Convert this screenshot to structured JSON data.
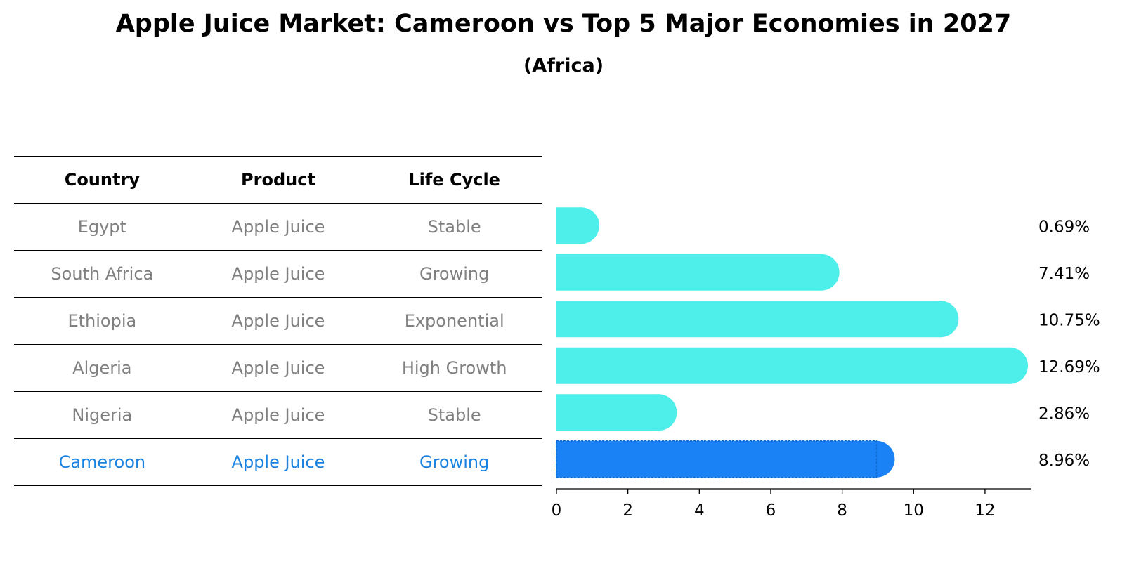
{
  "title": "Apple Juice Market: Cameroon vs Top 5 Major Economies in 2027",
  "subtitle": "(Africa)",
  "table": {
    "headers": [
      "Country",
      "Product",
      "Life Cycle"
    ],
    "rows": [
      {
        "country": "Egypt",
        "product": "Apple Juice",
        "life_cycle": "Stable"
      },
      {
        "country": "South Africa",
        "product": "Apple Juice",
        "life_cycle": "Growing"
      },
      {
        "country": "Ethiopia",
        "product": "Apple Juice",
        "life_cycle": "Exponential"
      },
      {
        "country": "Algeria",
        "product": "Apple Juice",
        "life_cycle": "High Growth"
      },
      {
        "country": "Nigeria",
        "product": "Apple Juice",
        "life_cycle": "Stable"
      },
      {
        "country": "Cameroon",
        "product": "Apple Juice",
        "life_cycle": "Growing",
        "highlight": true
      }
    ]
  },
  "colors": {
    "bar": "#4eeeea",
    "highlight_bar": "#1a82f5",
    "highlight_text": "#1a82e0",
    "row_text": "#808080"
  },
  "chart_data": {
    "type": "bar",
    "orientation": "horizontal",
    "categories": [
      "Egypt",
      "South Africa",
      "Ethiopia",
      "Algeria",
      "Nigeria",
      "Cameroon"
    ],
    "values": [
      0.69,
      7.41,
      10.75,
      12.69,
      2.86,
      8.96
    ],
    "value_labels": [
      "0.69%",
      "7.41%",
      "10.75%",
      "12.69%",
      "2.86%",
      "8.96%"
    ],
    "highlight_category": "Cameroon",
    "xlim": [
      0,
      13.3
    ],
    "xticks": [
      0,
      2,
      4,
      6,
      8,
      10,
      12
    ],
    "grid": false
  }
}
